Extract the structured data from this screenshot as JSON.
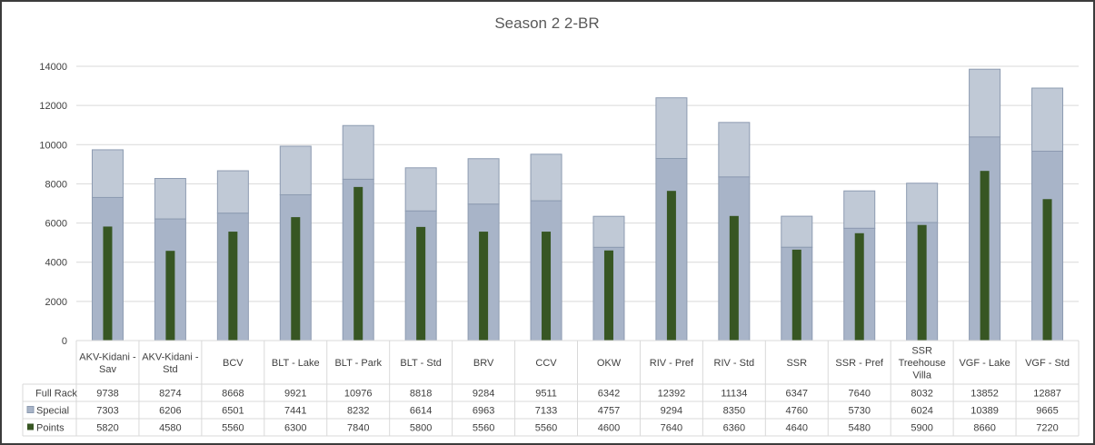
{
  "chart_data": {
    "type": "bar",
    "title": "Season 2 2-BR",
    "categories": [
      "AKV-Kidani - Sav",
      "AKV-Kidani - Std",
      "BCV",
      "BLT - Lake",
      "BLT - Park",
      "BLT - Std",
      "BRV",
      "CCV",
      "OKW",
      "RIV - Pref",
      "RIV - Std",
      "SSR",
      "SSR - Pref",
      "SSR Treehouse Villa",
      "VGF - Lake",
      "VGF - Std"
    ],
    "category_lines": [
      [
        "AKV-Kidani -",
        "Sav"
      ],
      [
        "AKV-Kidani -",
        "Std"
      ],
      [
        "BCV"
      ],
      [
        "BLT - Lake"
      ],
      [
        "BLT - Park"
      ],
      [
        "BLT - Std"
      ],
      [
        "BRV"
      ],
      [
        "CCV"
      ],
      [
        "OKW"
      ],
      [
        "RIV - Pref"
      ],
      [
        "RIV - Std"
      ],
      [
        "SSR"
      ],
      [
        "SSR - Pref"
      ],
      [
        "SSR",
        "Treehouse",
        "Villa"
      ],
      [
        "VGF - Lake"
      ],
      [
        "VGF - Std"
      ]
    ],
    "series": [
      {
        "name": "Full Rack",
        "values": [
          9738,
          8274,
          8668,
          9921,
          10976,
          8818,
          9284,
          9511,
          6342,
          12392,
          11134,
          6347,
          7640,
          8032,
          13852,
          12887
        ],
        "color": "#c0c9d6"
      },
      {
        "name": "Special",
        "values": [
          7303,
          6206,
          6501,
          7441,
          8232,
          6614,
          6963,
          7133,
          4757,
          9294,
          8350,
          4760,
          5730,
          6024,
          10389,
          9665
        ],
        "color": "#a8b4c8"
      },
      {
        "name": "Points",
        "values": [
          5820,
          4580,
          5560,
          6300,
          7840,
          5800,
          5560,
          5560,
          4600,
          7640,
          6360,
          4640,
          5480,
          5900,
          8660,
          7220
        ],
        "color": "#375623"
      }
    ],
    "ylim": [
      0,
      14000
    ],
    "yticks": [
      0,
      2000,
      4000,
      6000,
      8000,
      10000,
      12000,
      14000
    ],
    "grid": true,
    "legend": "data-table"
  },
  "colors": {
    "bar_border": "#8d9bb1",
    "grid": "#d9d9d9",
    "table_border": "#d9d9d9"
  }
}
